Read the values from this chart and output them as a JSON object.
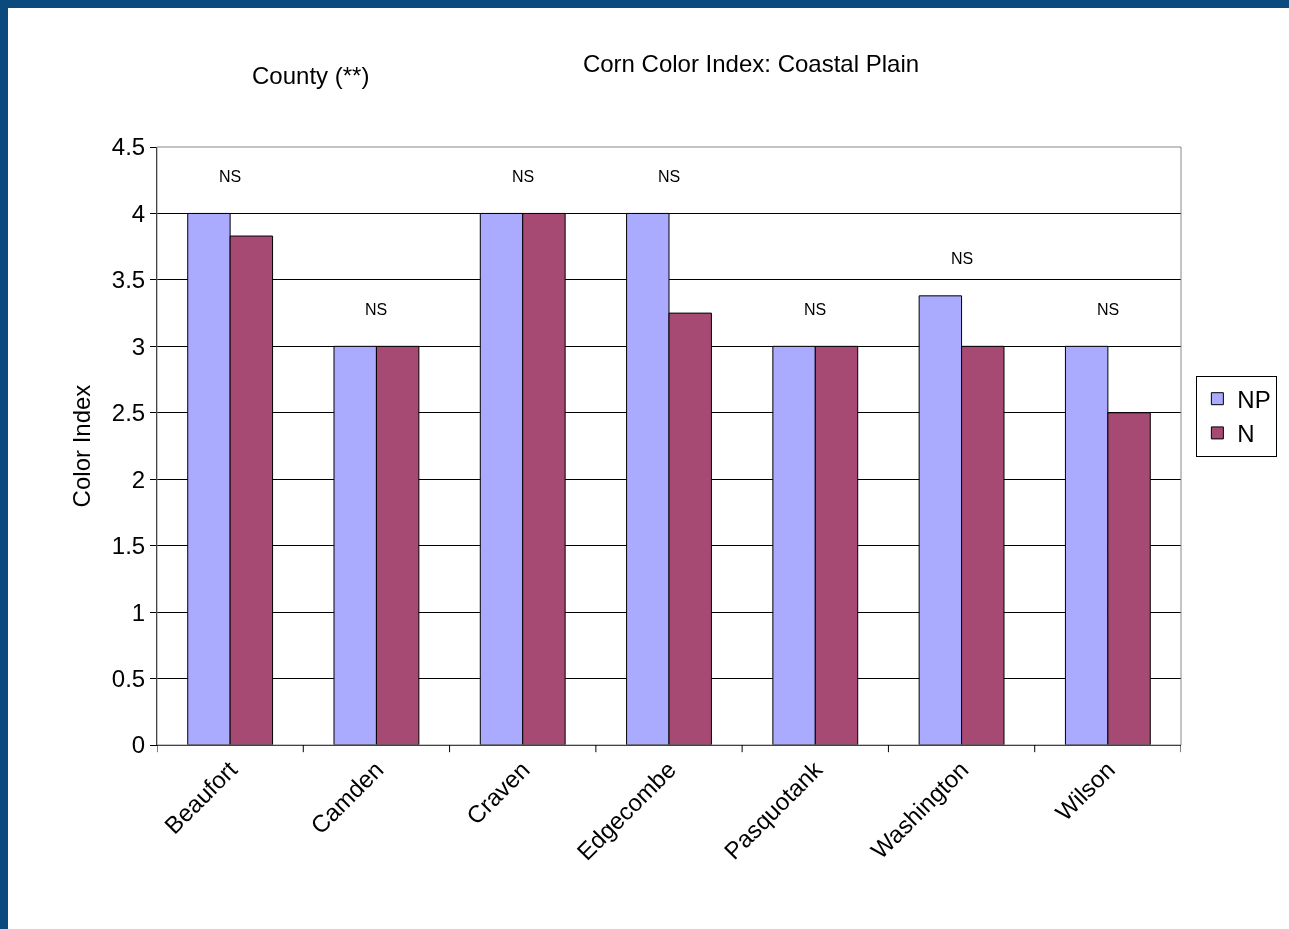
{
  "chart_data": {
    "type": "bar",
    "title": "Corn Color Index: Coastal Plain",
    "ylabel": "Color Index",
    "categories": [
      "Beaufort",
      "Camden",
      "Craven",
      "Edgecombe",
      "Pasquotank",
      "Washington",
      "Wilson"
    ],
    "series": [
      {
        "name": "NP",
        "color": "#aaaaff",
        "values": [
          4,
          3,
          4,
          4,
          3,
          3.38,
          3
        ]
      },
      {
        "name": "N",
        "color": "#a64a74",
        "values": [
          3.83,
          3,
          4,
          3.25,
          3,
          3,
          2.5
        ]
      }
    ],
    "ylim": [
      0,
      4.5
    ],
    "yticks": [
      0,
      0.5,
      1,
      1.5,
      2,
      2.5,
      3,
      3.5,
      4,
      4.5
    ],
    "grid": "y",
    "legend": "right",
    "annotations": [
      "County (**)",
      "NS",
      "NS",
      "NS",
      "NS",
      "NS",
      "NS",
      "NS"
    ]
  }
}
